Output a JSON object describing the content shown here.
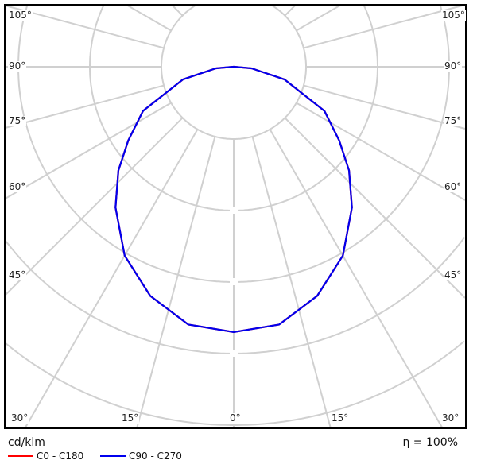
{
  "chart_data": {
    "type": "polar",
    "unit_label": "cd/klm",
    "efficiency_label": "η = 100%",
    "angle_labels": {
      "left": [
        "105°",
        "90°",
        "75°",
        "60°",
        "45°"
      ],
      "bottom": [
        "30°",
        "15°",
        "0°",
        "15°",
        "30°"
      ],
      "right": [
        "105°",
        "90°",
        "75°",
        "60°",
        "45°"
      ]
    },
    "grid": true,
    "legend_placement": "bottom-left",
    "series": [
      {
        "name": "C0 - C180",
        "color": "#ff0000",
        "angles": [
          0,
          10,
          20,
          30,
          40,
          48,
          55,
          64,
          76,
          85,
          90
        ],
        "values": [
          3.71,
          3.66,
          3.41,
          3.05,
          2.57,
          2.17,
          1.8,
          1.41,
          0.73,
          0.25,
          0
        ]
      },
      {
        "name": "C90 - C270",
        "color": "#0000ee",
        "angles": [
          0,
          10,
          20,
          30,
          40,
          48,
          55,
          64,
          76,
          85,
          90
        ],
        "values": [
          3.71,
          3.66,
          3.41,
          3.05,
          2.57,
          2.17,
          1.8,
          1.41,
          0.73,
          0.25,
          0
        ]
      }
    ]
  }
}
